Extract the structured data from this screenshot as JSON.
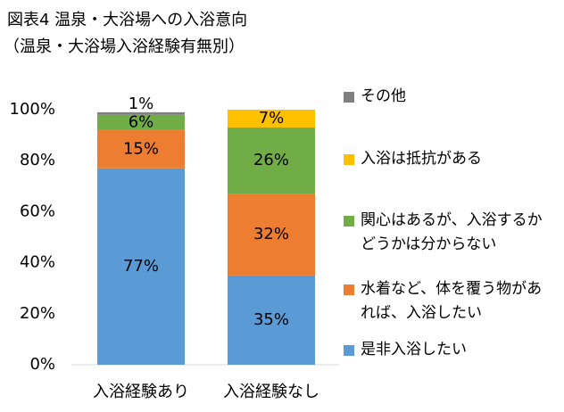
{
  "chart_data": {
    "type": "stacked_bar",
    "title": "図表4  温泉・大浴場への入浴意向",
    "subtitle": "（温泉・大浴場入浴経験有無別）",
    "categories": [
      "入浴経験あり",
      "入浴経験なし"
    ],
    "series": [
      {
        "name": "是非入浴したい",
        "color": "#5b9bd5",
        "values": [
          77,
          35
        ],
        "value_labels": [
          "77%",
          "35%"
        ]
      },
      {
        "name": "水着など、体を覆う物があれば、入浴したい",
        "color": "#ed7d31",
        "values": [
          15,
          32
        ],
        "value_labels": [
          "15%",
          "32%"
        ]
      },
      {
        "name": "関心はあるが、入浴するかどうかは分からない",
        "color": "#70ad47",
        "values": [
          6,
          26
        ],
        "value_labels": [
          "6%",
          "26%"
        ]
      },
      {
        "name": "入浴は抵抗がある",
        "color": "#ffc000",
        "values": [
          null,
          7
        ],
        "value_labels": [
          null,
          "7%"
        ]
      },
      {
        "name": "その他",
        "color": "#7f7f7f",
        "values": [
          1,
          null
        ],
        "value_labels": [
          "1%",
          null
        ]
      }
    ],
    "ylim": [
      0,
      100
    ],
    "yticks": [
      {
        "value": 0,
        "label": "0%"
      },
      {
        "value": 20,
        "label": "20%"
      },
      {
        "value": 40,
        "label": "40%"
      },
      {
        "value": 60,
        "label": "60%"
      },
      {
        "value": 80,
        "label": "80%"
      },
      {
        "value": 100,
        "label": "100%"
      }
    ],
    "grid": false
  }
}
